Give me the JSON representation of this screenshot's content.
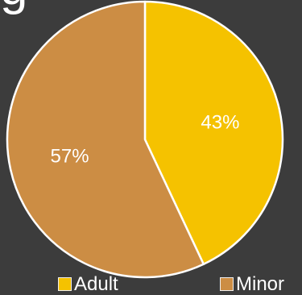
{
  "title_fragment": "g",
  "chart_data": {
    "type": "pie",
    "title": "",
    "slices": [
      {
        "name": "Adult",
        "value": 43,
        "label": "43%",
        "color": "#f5c200"
      },
      {
        "name": "Minor",
        "value": 57,
        "label": "57%",
        "color": "#cc8d44"
      }
    ],
    "legend": {
      "placement": "bottom",
      "entries": [
        "Adult",
        "Minor"
      ]
    }
  }
}
